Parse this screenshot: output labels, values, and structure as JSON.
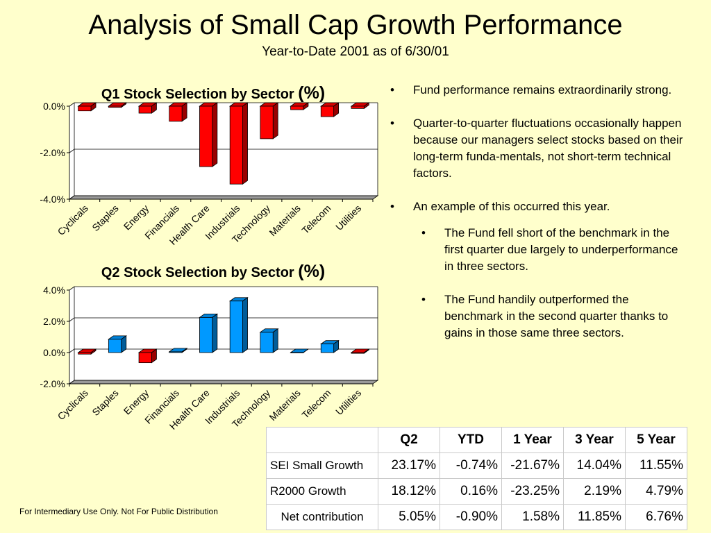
{
  "slide": {
    "title": "Analysis of Small Cap Growth Performance",
    "subtitle": "Year-to-Date 2001 as of 6/30/01",
    "footer": "For Intermediary Use Only.  Not For Public Distribution"
  },
  "chart_data": [
    {
      "type": "bar",
      "title": "Q1 Stock Selection by Sector ",
      "title_suffix": "(%)",
      "categories": [
        "Cyclicals",
        "Staples",
        "Energy",
        "Financials",
        "Health Care",
        "Industrials",
        "Technology",
        "Materials",
        "Telecom",
        "Utilities"
      ],
      "values": [
        -0.2,
        -0.05,
        -0.3,
        -0.65,
        -2.6,
        -3.35,
        -1.4,
        -0.15,
        -0.45,
        -0.1
      ],
      "ylim": [
        -4.0,
        0.0
      ],
      "yticks": [
        0.0,
        -2.0,
        -4.0
      ],
      "ytick_labels": [
        "0.0%",
        "-2.0%",
        "-4.0%"
      ],
      "colors": {
        "negative": "#ff0000",
        "positive": "#0099ff"
      },
      "grid": true,
      "xlabel": "",
      "ylabel": ""
    },
    {
      "type": "bar",
      "title": "Q2 Stock Selection by Sector ",
      "title_suffix": "(%)",
      "categories": [
        "Cyclicals",
        "Staples",
        "Energy",
        "Financials",
        "Health Care",
        "Industrials",
        "Technology",
        "Materials",
        "Telecom",
        "Utilities"
      ],
      "values": [
        -0.1,
        0.85,
        -0.65,
        0.05,
        2.25,
        3.3,
        1.3,
        0.0,
        0.55,
        -0.05
      ],
      "ylim": [
        -2.0,
        4.0
      ],
      "yticks": [
        4.0,
        2.0,
        0.0,
        -2.0
      ],
      "ytick_labels": [
        "4.0%",
        "2.0%",
        "0.0%",
        "-2.0%"
      ],
      "colors": {
        "negative": "#ff0000",
        "positive": "#0099ff"
      },
      "grid": true,
      "xlabel": "",
      "ylabel": ""
    }
  ],
  "bullets": [
    {
      "level": 1,
      "marker": "•",
      "text": "Fund performance remains extraordinarily strong."
    },
    {
      "level": 1,
      "marker": "•",
      "text": "Quarter-to-quarter fluctuations occasionally happen because our managers select stocks based on their long-term funda-mentals, not short-term technical factors."
    },
    {
      "level": 1,
      "marker": "•",
      "text": "An example of this occurred this year."
    },
    {
      "level": 2,
      "marker": "•",
      "text": "The Fund fell short of the benchmark in the first quarter due largely to underperformance in three sectors."
    },
    {
      "level": 2,
      "marker": "•",
      "text": "The Fund handily outperformed the benchmark in the second quarter thanks to gains in those same three sectors."
    }
  ],
  "table": {
    "headers": [
      "",
      "Q2",
      "YTD",
      "1 Year",
      "3 Year",
      "5 Year"
    ],
    "rows": [
      [
        "SEI Small Growth",
        "23.17%",
        "-0.74%",
        "-21.67%",
        "14.04%",
        "11.55%"
      ],
      [
        "R2000 Growth",
        "18.12%",
        "0.16%",
        "-23.25%",
        "2.19%",
        "4.79%"
      ],
      [
        "Net contribution",
        "5.05%",
        "-0.90%",
        "1.58%",
        "11.85%",
        "6.76%"
      ]
    ]
  }
}
